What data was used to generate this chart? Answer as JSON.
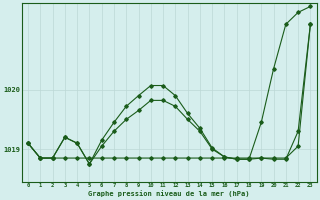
{
  "background_color": "#d5eeed",
  "grid_color": "#bcd8d5",
  "line_color": "#1a5c1a",
  "xlabel": "Graphe pression niveau de la mer (hPa)",
  "yticks": [
    1019,
    1020
  ],
  "xticks": [
    0,
    1,
    2,
    3,
    4,
    5,
    6,
    7,
    8,
    9,
    10,
    11,
    12,
    13,
    14,
    15,
    16,
    17,
    18,
    19,
    20,
    21,
    22,
    23
  ],
  "xlim": [
    -0.5,
    23.5
  ],
  "ylim": [
    1018.45,
    1021.45
  ],
  "line1_x": [
    0,
    1,
    2,
    3,
    4,
    5,
    6,
    7,
    8,
    9,
    10,
    11,
    12,
    13,
    14,
    15,
    16,
    17,
    18,
    19,
    20,
    21,
    22,
    23
  ],
  "line1_y": [
    1019.1,
    1018.85,
    1018.85,
    1018.85,
    1018.85,
    1018.85,
    1018.85,
    1018.85,
    1018.85,
    1018.85,
    1018.85,
    1018.85,
    1018.85,
    1018.85,
    1018.85,
    1018.85,
    1018.85,
    1018.85,
    1018.85,
    1018.85,
    1018.85,
    1018.85,
    1019.05,
    1021.1
  ],
  "line2_x": [
    0,
    1,
    2,
    3,
    4,
    5,
    6,
    7,
    8,
    9,
    10,
    11,
    12,
    13,
    14,
    15,
    16,
    17,
    18,
    19,
    20,
    21,
    22,
    23
  ],
  "line2_y": [
    1019.1,
    1018.85,
    1018.85,
    1019.2,
    1019.1,
    1018.75,
    1019.05,
    1019.3,
    1019.5,
    1019.65,
    1019.82,
    1019.82,
    1019.72,
    1019.5,
    1019.3,
    1019.0,
    1018.87,
    1018.83,
    1018.83,
    1018.85,
    1018.83,
    1018.83,
    1019.3,
    1021.1
  ],
  "line3_x": [
    0,
    1,
    2,
    3,
    4,
    5,
    6,
    7,
    8,
    9,
    10,
    11,
    12,
    13,
    14,
    15,
    16,
    17,
    18,
    19,
    20,
    21,
    22,
    23
  ],
  "line3_y": [
    1019.1,
    1018.85,
    1018.85,
    1019.2,
    1019.1,
    1018.75,
    1019.15,
    1019.45,
    1019.72,
    1019.9,
    1020.07,
    1020.07,
    1019.9,
    1019.6,
    1019.35,
    1019.02,
    1018.87,
    1018.83,
    1018.83,
    1019.45,
    1020.35,
    1021.1,
    1021.3,
    1021.4
  ]
}
